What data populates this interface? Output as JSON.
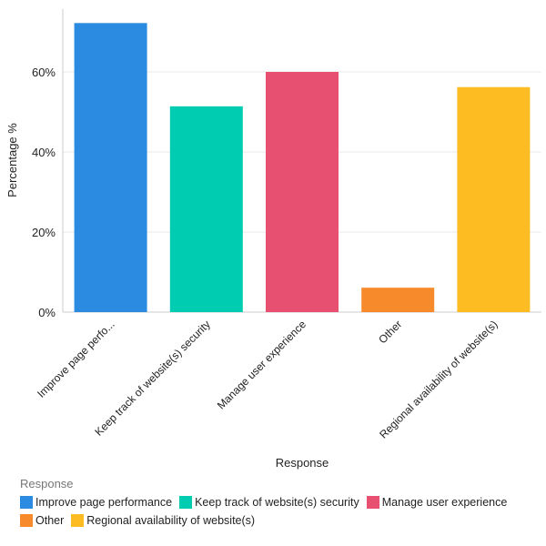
{
  "chart_data": {
    "type": "bar",
    "title": "",
    "xlabel": "Response",
    "ylabel": "Percentage %",
    "ylim": [
      0,
      75
    ],
    "yticks": [
      0,
      20,
      40,
      60
    ],
    "ytick_labels": [
      "0%",
      "20%",
      "40%",
      "60%"
    ],
    "grid": true,
    "categories": [
      "Improve page performance",
      "Keep track of website(s) security",
      "Manage user experience",
      "Other",
      "Regional availability of website(s)"
    ],
    "tick_labels": [
      "Improve page perfo...",
      "Keep track of website(s) security",
      "Manage user experience",
      "Other",
      "Regional availability of website(s)"
    ],
    "values": [
      72.2,
      51.4,
      60.0,
      6.1,
      56.2
    ],
    "colors": [
      "#2a8be0",
      "#00ccb1",
      "#e85071",
      "#f78a2b",
      "#fdbc22"
    ],
    "legend": {
      "title": "Response",
      "placement": "bottom-left",
      "entries": [
        "Improve page performance",
        "Keep track of website(s) security",
        "Manage user experience",
        "Other",
        "Regional availability of website(s)"
      ]
    }
  }
}
